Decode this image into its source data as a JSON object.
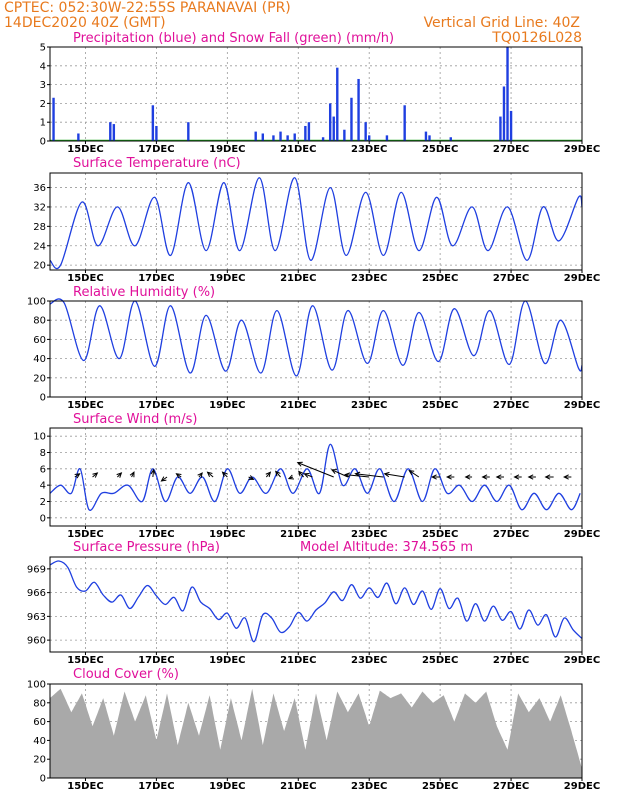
{
  "header": {
    "line1": "CPTEC:   052:30W-22:55S   PARANAVAI (PR)",
    "line2_left": "14DEC2020 40Z (GMT)",
    "line2_right": "Vertical Grid Line: 40Z",
    "line3_right": "TQ0126L028"
  },
  "colors": {
    "header": "#e87a1e",
    "title": "#e0109a",
    "line": "#1f3fe0",
    "precip": "#1f3fe0",
    "snow": "#22aa22",
    "cloud": "#a9a9a9",
    "grid": "#9a9a9a"
  },
  "x_tick_labels": [
    "15DEC",
    "17DEC",
    "19DEC",
    "21DEC",
    "23DEC",
    "25DEC",
    "27DEC",
    "29DEC"
  ],
  "chart_data": [
    {
      "id": "precip",
      "type": "bar",
      "title": "Precipitation (blue) and Snow Fall (green) (mm/h)",
      "ylim": [
        0,
        5
      ],
      "yticks": [
        0,
        1,
        2,
        3,
        4,
        5
      ],
      "grid": true,
      "x": [
        14.1,
        14.8,
        15.7,
        15.8,
        16.9,
        17.0,
        17.9,
        19.8,
        20.0,
        20.3,
        20.5,
        20.7,
        20.9,
        21.2,
        21.3,
        21.7,
        21.9,
        22.0,
        22.1,
        22.3,
        22.5,
        22.7,
        22.9,
        23.0,
        23.5,
        24.0,
        24.6,
        24.7,
        25.3,
        26.7,
        26.8,
        26.9,
        27.0
      ],
      "values": [
        2.3,
        0.4,
        1.0,
        0.9,
        1.9,
        0.8,
        1.0,
        0.5,
        0.4,
        0.3,
        0.5,
        0.3,
        0.4,
        0.8,
        1.0,
        0.2,
        2.0,
        1.3,
        3.9,
        0.6,
        2.3,
        3.3,
        1.0,
        0.3,
        0.3,
        1.9,
        0.5,
        0.3,
        0.2,
        1.3,
        2.9,
        5.0,
        1.6
      ],
      "snow_values": 0
    },
    {
      "id": "temperature",
      "type": "line",
      "title": "Surface Temperature (nC)",
      "ylim": [
        19,
        39
      ],
      "yticks": [
        20,
        24,
        28,
        32,
        36
      ],
      "grid": true,
      "x": [
        14.0,
        14.3,
        14.9,
        15.35,
        15.9,
        16.4,
        16.95,
        17.4,
        17.9,
        18.4,
        18.9,
        19.35,
        19.9,
        20.35,
        20.9,
        21.35,
        21.9,
        22.35,
        22.9,
        23.4,
        23.9,
        24.4,
        24.9,
        25.35,
        25.9,
        26.35,
        26.9,
        27.45,
        27.9,
        28.35,
        28.9,
        29.0
      ],
      "values": [
        21,
        20,
        33,
        24,
        32,
        24,
        34,
        22,
        37,
        23,
        37,
        23,
        38,
        23,
        38,
        21,
        36,
        22,
        35,
        22,
        35,
        23,
        34,
        24,
        32,
        23,
        32,
        21,
        32,
        25,
        34,
        32
      ]
    },
    {
      "id": "humidity",
      "type": "line",
      "title": "Relative Humidity (%)",
      "ylim": [
        0,
        100
      ],
      "yticks": [
        0,
        20,
        40,
        60,
        80,
        100
      ],
      "grid": true,
      "x": [
        14.0,
        14.4,
        14.95,
        15.4,
        15.95,
        16.4,
        16.95,
        17.4,
        17.95,
        18.4,
        18.95,
        19.4,
        19.95,
        20.4,
        20.95,
        21.4,
        21.95,
        22.4,
        22.95,
        23.4,
        23.95,
        24.4,
        24.95,
        25.4,
        25.95,
        26.4,
        26.95,
        27.4,
        27.95,
        28.4,
        28.9,
        29.0
      ],
      "values": [
        97,
        98,
        38,
        95,
        40,
        100,
        32,
        95,
        25,
        85,
        27,
        80,
        25,
        90,
        22,
        95,
        28,
        90,
        35,
        90,
        33,
        88,
        37,
        92,
        43,
        90,
        34,
        100,
        35,
        80,
        30,
        33
      ]
    },
    {
      "id": "wind",
      "type": "line",
      "title": "Surface Wind (m/s)",
      "ylim": [
        -1,
        11
      ],
      "yticks": [
        0,
        2,
        4,
        6,
        8,
        10
      ],
      "grid": true,
      "x": [
        14.0,
        14.3,
        14.6,
        14.85,
        15.1,
        15.45,
        15.8,
        16.2,
        16.6,
        16.9,
        17.25,
        17.6,
        17.95,
        18.3,
        18.65,
        19.0,
        19.35,
        19.7,
        20.1,
        20.5,
        20.85,
        21.25,
        21.6,
        21.9,
        22.25,
        22.6,
        22.95,
        23.3,
        23.7,
        24.1,
        24.5,
        24.85,
        25.2,
        25.55,
        25.9,
        26.25,
        26.6,
        26.95,
        27.3,
        27.65,
        28.0,
        28.35,
        28.7,
        28.95
      ],
      "values": [
        3,
        4,
        3,
        6,
        1,
        3,
        3,
        4,
        2,
        6,
        2,
        5,
        3,
        5,
        2,
        6,
        3,
        5,
        3,
        6,
        3,
        6,
        3,
        9,
        4,
        6,
        3,
        6,
        2,
        6,
        2,
        6,
        3,
        4,
        2,
        4,
        2,
        4,
        1,
        3,
        1,
        3,
        1,
        3
      ],
      "arrows_x": [
        14.7,
        15.2,
        15.9,
        16.3,
        16.9,
        17.3,
        17.7,
        18.2,
        18.6,
        19.0,
        19.6,
        20.1,
        20.5,
        20.85,
        21.15,
        21.4,
        22.0,
        22.4,
        23.0,
        23.4,
        24.0,
        24.4,
        25.0,
        25.4,
        25.9,
        26.4,
        26.8,
        27.3,
        27.7,
        28.2,
        28.7
      ],
      "arrows_u": [
        0.6,
        0.6,
        0.5,
        0.3,
        0.1,
        -0.7,
        -0.6,
        0.4,
        -0.7,
        -0.6,
        0.6,
        0.5,
        -0.6,
        -0.5,
        -0.6,
        -1.0,
        -4.5,
        -2.0,
        -3.0,
        -3.5,
        -2.5,
        -1.2,
        -1.0,
        -0.9,
        -0.8,
        -0.9,
        -0.9,
        -0.9,
        -0.9,
        -1.0,
        -0.9
      ],
      "arrows_v": [
        0.4,
        0.5,
        0.5,
        0.6,
        0.9,
        -0.5,
        0.4,
        0.5,
        0.6,
        0.6,
        -0.3,
        0.6,
        0.7,
        -0.2,
        0.7,
        0.4,
        1.8,
        0.9,
        0.3,
        0.4,
        0.4,
        0.8,
        0.0,
        0.0,
        0.0,
        0.0,
        0.0,
        0.0,
        0.0,
        0.0,
        0.0
      ]
    },
    {
      "id": "pressure",
      "type": "line",
      "title": "Surface Pressure (hPa)",
      "annotation": "Model Altitude: 374.565 m",
      "ylim": [
        958.5,
        970.5
      ],
      "yticks": [
        960,
        963,
        966,
        969
      ],
      "grid": true,
      "x": [
        14.0,
        14.25,
        14.5,
        14.75,
        15.0,
        15.25,
        15.5,
        15.75,
        16.0,
        16.25,
        16.5,
        16.75,
        17.0,
        17.25,
        17.5,
        17.75,
        18.0,
        18.25,
        18.5,
        18.75,
        19.0,
        19.25,
        19.5,
        19.75,
        20.0,
        20.25,
        20.5,
        20.75,
        21.0,
        21.25,
        21.5,
        21.75,
        22.0,
        22.25,
        22.5,
        22.75,
        23.0,
        23.25,
        23.5,
        23.75,
        24.0,
        24.25,
        24.5,
        24.75,
        25.0,
        25.25,
        25.5,
        25.75,
        26.0,
        26.25,
        26.5,
        26.75,
        27.0,
        27.25,
        27.5,
        27.75,
        28.0,
        28.25,
        28.5,
        28.75,
        29.0
      ],
      "values": [
        969.5,
        970.0,
        969.2,
        966.7,
        966.2,
        967.3,
        965.7,
        964.8,
        965.7,
        964.0,
        965.5,
        966.9,
        965.6,
        964.5,
        965.4,
        963.7,
        966.7,
        964.8,
        964.0,
        962.6,
        963.4,
        961.5,
        962.8,
        959.8,
        963.2,
        962.8,
        961.0,
        961.7,
        963.5,
        962.4,
        963.8,
        964.7,
        966.1,
        965.0,
        967.0,
        965.3,
        966.6,
        965.4,
        967.2,
        964.6,
        966.6,
        964.5,
        966.2,
        963.9,
        966.5,
        964.0,
        965.3,
        962.4,
        964.6,
        962.4,
        964.3,
        962.5,
        963.6,
        961.4,
        963.8,
        961.9,
        963.2,
        960.4,
        962.8,
        961.3,
        960.2
      ]
    },
    {
      "id": "cloud",
      "type": "area",
      "title": "Cloud Cover (%)",
      "ylim": [
        0,
        100
      ],
      "yticks": [
        0,
        20,
        40,
        60,
        80,
        100
      ],
      "grid": true,
      "x": [
        14.0,
        14.3,
        14.6,
        14.9,
        15.2,
        15.5,
        15.8,
        16.1,
        16.4,
        16.7,
        17.0,
        17.3,
        17.6,
        17.9,
        18.2,
        18.5,
        18.8,
        19.1,
        19.4,
        19.7,
        20.0,
        20.3,
        20.6,
        20.9,
        21.2,
        21.5,
        21.8,
        22.1,
        22.4,
        22.7,
        23.0,
        23.3,
        23.6,
        23.9,
        24.2,
        24.5,
        24.8,
        25.1,
        25.4,
        25.7,
        26.0,
        26.3,
        26.6,
        26.9,
        27.2,
        27.5,
        27.8,
        28.1,
        28.4,
        28.7,
        29.0
      ],
      "values": [
        85,
        95,
        70,
        90,
        55,
        85,
        45,
        92,
        60,
        88,
        40,
        90,
        35,
        80,
        45,
        88,
        30,
        85,
        40,
        95,
        35,
        90,
        50,
        85,
        30,
        90,
        40,
        92,
        70,
        90,
        55,
        93,
        85,
        90,
        75,
        92,
        80,
        88,
        60,
        90,
        80,
        92,
        55,
        30,
        90,
        70,
        85,
        60,
        88,
        50,
        10
      ]
    }
  ]
}
